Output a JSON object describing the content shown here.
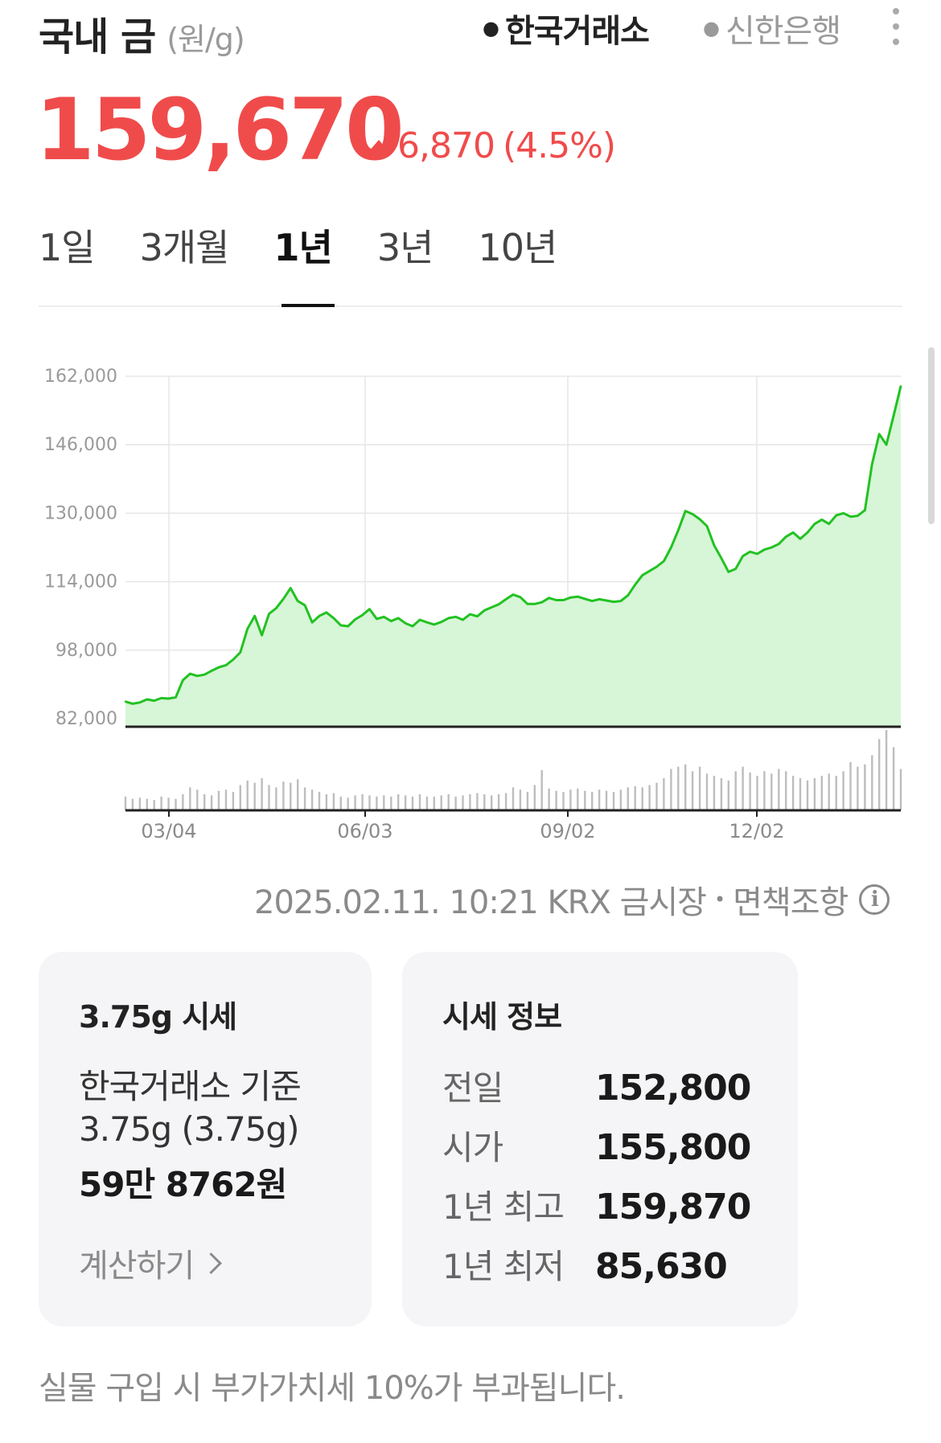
{
  "header": {
    "title": "국내 금",
    "unit": "(원/g)",
    "sources": [
      {
        "label": "한국거래소",
        "active": true
      },
      {
        "label": "신한은행",
        "active": false
      }
    ],
    "more_icon": "more-vertical-icon"
  },
  "price": {
    "current": "159,670",
    "change": "6,870",
    "change_pct": "(4.5%)",
    "direction": "up",
    "color": "#f04b4b"
  },
  "tabs": [
    {
      "label": "1일",
      "active": false
    },
    {
      "label": "3개월",
      "active": false
    },
    {
      "label": "1년",
      "active": true
    },
    {
      "label": "3년",
      "active": false
    },
    {
      "label": "10년",
      "active": false
    }
  ],
  "chart_data": {
    "type": "area",
    "line_color": "#22c222",
    "fill_color": "#d7f5d7",
    "y_ticks": [
      "162,000",
      "146,000",
      "130,000",
      "114,000",
      "98,000",
      "82,000"
    ],
    "ylim": [
      82000,
      162000
    ],
    "x_ticks": [
      "03/04",
      "06/03",
      "09/02",
      "12/02"
    ],
    "series": [
      {
        "values": [
          86000,
          85500,
          85800,
          86500,
          86200,
          86800,
          86700,
          87000,
          91000,
          92500,
          92000,
          92300,
          93200,
          94000,
          94500,
          95800,
          97500,
          103000,
          106000,
          101500,
          106500,
          107800,
          110000,
          112500,
          109500,
          108500,
          104500,
          106000,
          106800,
          105500,
          103800,
          103600,
          105200,
          106200,
          107600,
          105300,
          105800,
          104800,
          105500,
          104300,
          103600,
          105100,
          104500,
          104000,
          104600,
          105500,
          105800,
          105100,
          106400,
          105900,
          107300,
          108000,
          108700,
          109900,
          111000,
          110400,
          108800,
          108800,
          109200,
          110200,
          109700,
          109700,
          110300,
          110500,
          110000,
          109500,
          109900,
          109600,
          109300,
          109500,
          110800,
          113300,
          115500,
          116500,
          117500,
          118800,
          122000,
          126000,
          130500,
          129800,
          128600,
          127000,
          122500,
          119500,
          116300,
          117000,
          120000,
          121000,
          120500,
          121500,
          122000,
          122800,
          124500,
          125500,
          124000,
          125500,
          127500,
          128500,
          127500,
          129500,
          130000,
          129200,
          129400,
          130700,
          141500,
          148500,
          146000,
          152800,
          159670
        ]
      }
    ],
    "volume": [
      12,
      10,
      11,
      10,
      9,
      12,
      11,
      10,
      14,
      20,
      18,
      14,
      13,
      17,
      18,
      16,
      22,
      26,
      24,
      28,
      22,
      20,
      25,
      24,
      27,
      20,
      18,
      16,
      14,
      15,
      12,
      11,
      13,
      14,
      13,
      12,
      13,
      12,
      14,
      13,
      12,
      14,
      12,
      12,
      13,
      14,
      12,
      13,
      14,
      15,
      14,
      13,
      14,
      15,
      20,
      18,
      16,
      22,
      35,
      19,
      17,
      16,
      18,
      19,
      17,
      16,
      18,
      17,
      16,
      18,
      20,
      21,
      20,
      22,
      24,
      28,
      36,
      38,
      40,
      34,
      38,
      32,
      30,
      28,
      26,
      34,
      38,
      33,
      30,
      34,
      32,
      36,
      34,
      30,
      28,
      26,
      28,
      30,
      32,
      30,
      34,
      42,
      38,
      40,
      48,
      62,
      70,
      55,
      36
    ],
    "x_label": "",
    "y_label": ""
  },
  "timestamp": {
    "text": "2025.02.11. 10:21 KRX 금시장",
    "disclaimer": "면책조항",
    "info_icon": "info-icon"
  },
  "card_375": {
    "title": "3.75g 시세",
    "basis": "한국거래소 기준",
    "weight": "3.75g (3.75g)",
    "amount": "59만 8762원",
    "calc_label": "계산하기"
  },
  "card_info": {
    "title": "시세 정보",
    "rows": [
      {
        "label": "전일",
        "value": "152,800"
      },
      {
        "label": "시가",
        "value": "155,800"
      },
      {
        "label": "1년 최고",
        "value": "159,870"
      },
      {
        "label": "1년 최저",
        "value": "85,630"
      }
    ]
  },
  "footnote": "실물 구입 시 부가가치세 10%가 부과됩니다."
}
